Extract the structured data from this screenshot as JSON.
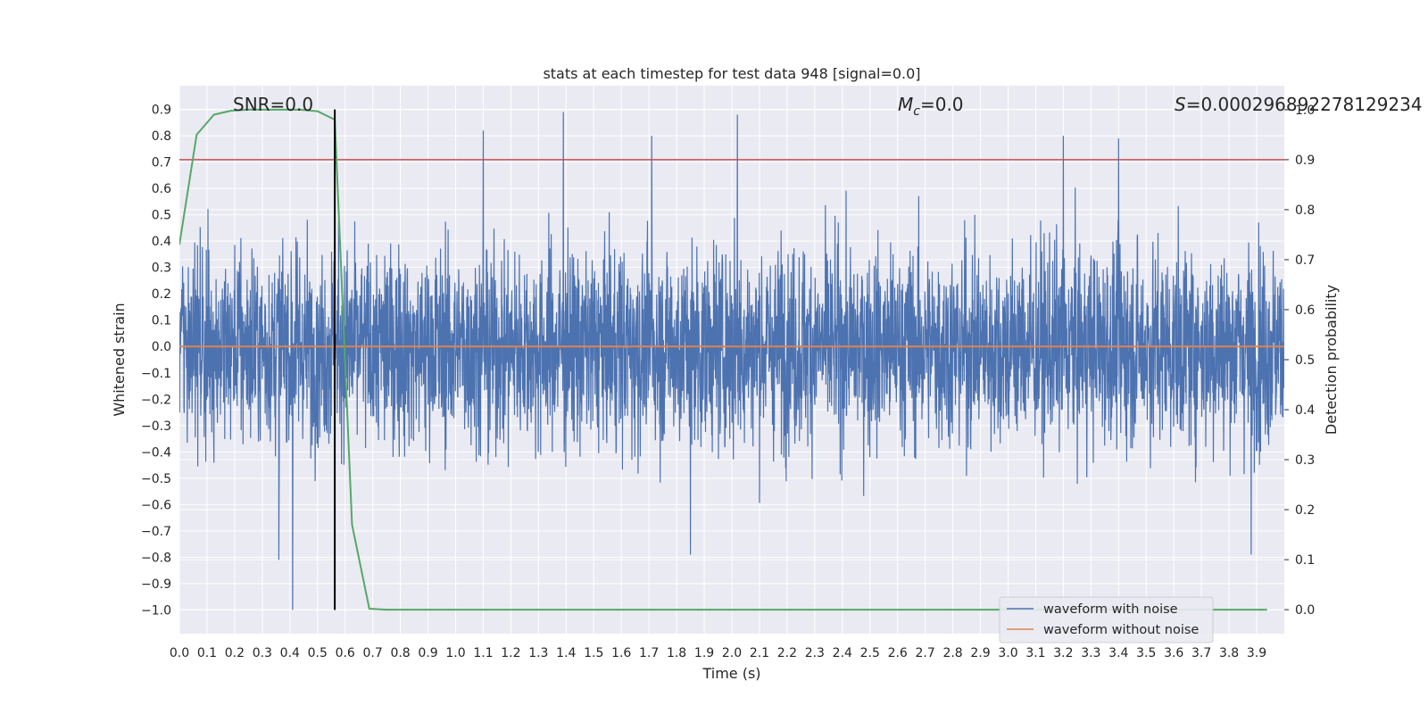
{
  "chart_data": {
    "type": "line",
    "title": "stats at each timestep for test data 948 [signal=0.0]",
    "xlabel": "Time (s)",
    "ylabel": "Whitened strain",
    "y2label": "Detection probability",
    "xlim": [
      0.0,
      4.0
    ],
    "ylim": [
      -1.09,
      0.99
    ],
    "y2lim": [
      -0.048,
      1.048
    ],
    "x_ticks": [
      "0.0",
      "0.1",
      "0.2",
      "0.3",
      "0.4",
      "0.5",
      "0.6",
      "0.7",
      "0.8",
      "0.9",
      "1.0",
      "1.1",
      "1.2",
      "1.3",
      "1.4",
      "1.5",
      "1.6",
      "1.7",
      "1.8",
      "1.9",
      "2.0",
      "2.1",
      "2.2",
      "2.3",
      "2.4",
      "2.5",
      "2.6",
      "2.7",
      "2.8",
      "2.9",
      "3.0",
      "3.1",
      "3.2",
      "3.3",
      "3.4",
      "3.5",
      "3.6",
      "3.7",
      "3.8",
      "3.9"
    ],
    "y_ticks": [
      "0.9",
      "0.8",
      "0.7",
      "0.6",
      "0.5",
      "0.4",
      "0.3",
      "0.2",
      "0.1",
      "0.0",
      "−0.1",
      "−0.2",
      "−0.3",
      "−0.4",
      "−0.5",
      "−0.6",
      "−0.7",
      "−0.8",
      "−0.9",
      "−1.0"
    ],
    "y2_ticks": [
      "1.0",
      "0.9",
      "0.8",
      "0.7",
      "0.6",
      "0.5",
      "0.4",
      "0.3",
      "0.2",
      "0.1",
      "0.0"
    ],
    "grid": true,
    "legend_position": "lower-right",
    "annotations": {
      "snr": "SNR=0.0",
      "mc_symbol": "M",
      "mc_sub": "c",
      "mc_value": "=0.0",
      "s_symbol": "S",
      "s_value": "=0.000296892278129234"
    },
    "series": [
      {
        "name": "waveform with noise",
        "color": "#4c72b0",
        "axis": "left",
        "description_kind": "noise",
        "amplitude_typical": 0.25,
        "peaks": [
          {
            "x": 1.39,
            "y": 0.89
          },
          {
            "x": 2.02,
            "y": 0.88
          },
          {
            "x": 1.1,
            "y": 0.82
          },
          {
            "x": 0.41,
            "y": -1.0
          },
          {
            "x": 0.36,
            "y": -0.81
          },
          {
            "x": 1.85,
            "y": -0.79
          },
          {
            "x": 3.88,
            "y": -0.79
          },
          {
            "x": 3.2,
            "y": 0.8
          },
          {
            "x": 3.4,
            "y": 0.79
          },
          {
            "x": 1.71,
            "y": 0.8
          }
        ]
      },
      {
        "name": "waveform without noise",
        "color": "#dd8452",
        "axis": "left",
        "x": [
          0.0,
          4.0
        ],
        "y": [
          0.0,
          0.0
        ]
      },
      {
        "name": "",
        "color": "#55a868",
        "axis": "right",
        "x": [
          0.0,
          0.0625,
          0.125,
          0.1875,
          0.25,
          0.3125,
          0.375,
          0.4375,
          0.5,
          0.5625,
          0.625,
          0.6875,
          0.75,
          0.8125,
          1.0,
          1.5,
          2.0,
          2.5,
          3.0,
          3.5,
          3.9375
        ],
        "y": [
          0.73,
          0.95,
          0.99,
          0.998,
          1.0,
          1.0,
          1.0,
          1.0,
          0.997,
          0.98,
          0.17,
          0.002,
          0.0,
          0.0,
          0.0,
          0.0,
          0.0,
          0.0,
          0.0,
          0.0,
          0.0
        ]
      }
    ],
    "threshold": {
      "axis": "right",
      "value": 0.9,
      "color": "#c44e52"
    },
    "marker": {
      "x": 0.5625,
      "y": [
        -1.0,
        0.9
      ],
      "color": "#000000"
    }
  }
}
